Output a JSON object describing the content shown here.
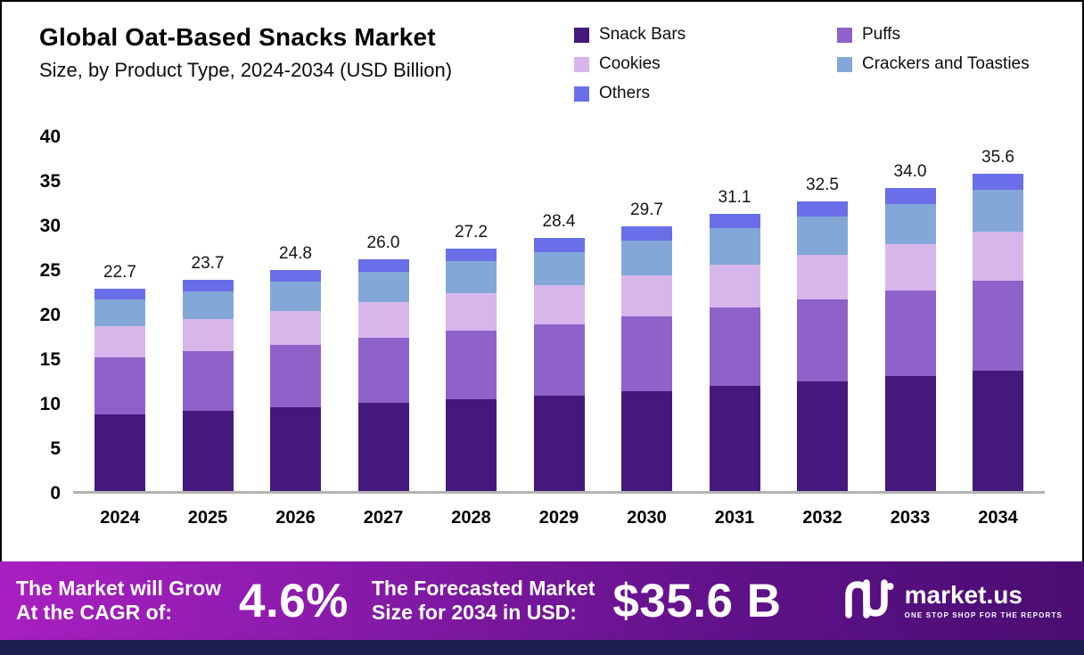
{
  "header": {
    "title": "Global Oat-Based Snacks Market",
    "subtitle": "Size, by Product Type, 2024-2034 (USD Billion)"
  },
  "chart_data": {
    "type": "bar",
    "stacked": true,
    "title": "Global Oat-Based Snacks Market Size, by Product Type, 2024-2034 (USD Billion)",
    "xlabel": "",
    "ylabel": "",
    "ylim": [
      0,
      40
    ],
    "yticks": [
      0,
      5,
      10,
      15,
      20,
      25,
      30,
      35,
      40
    ],
    "grid": false,
    "legend_position": "top-right",
    "categories": [
      "2024",
      "2025",
      "2026",
      "2027",
      "2028",
      "2029",
      "2030",
      "2031",
      "2032",
      "2033",
      "2034"
    ],
    "series": [
      {
        "name": "Snack Bars",
        "color": "#45197b",
        "values": [
          8.6,
          9.0,
          9.4,
          9.9,
          10.3,
          10.7,
          11.2,
          11.8,
          12.3,
          12.9,
          13.5
        ]
      },
      {
        "name": "Puffs",
        "color": "#8f62c9",
        "values": [
          6.4,
          6.7,
          7.0,
          7.3,
          7.7,
          8.0,
          8.4,
          8.8,
          9.2,
          9.6,
          10.1
        ]
      },
      {
        "name": "Cookies",
        "color": "#d7b6ec",
        "values": [
          3.5,
          3.6,
          3.8,
          4.0,
          4.2,
          4.4,
          4.6,
          4.8,
          5.0,
          5.2,
          5.5
        ]
      },
      {
        "name": "Crackers and Toasties",
        "color": "#83a8d8",
        "values": [
          3.0,
          3.1,
          3.3,
          3.4,
          3.6,
          3.7,
          3.9,
          4.1,
          4.3,
          4.5,
          4.7
        ]
      },
      {
        "name": "Others",
        "color": "#6a6ee8",
        "values": [
          1.2,
          1.3,
          1.3,
          1.4,
          1.4,
          1.6,
          1.6,
          1.6,
          1.7,
          1.8,
          1.8
        ]
      }
    ],
    "total_labels": [
      "22.7",
      "23.7",
      "24.8",
      "26.0",
      "27.2",
      "28.4",
      "29.7",
      "31.1",
      "32.5",
      "34.0",
      "35.6"
    ]
  },
  "footer": {
    "cagr_label_line1": "The Market will Grow",
    "cagr_label_line2": "At the CAGR of:",
    "cagr_value": "4.6%",
    "forecast_label_line1": "The Forecasted Market",
    "forecast_label_line2": "Size for 2034 in USD:",
    "forecast_value": "$35.6 B",
    "brand_name": "market.us",
    "brand_tagline": "ONE STOP SHOP FOR THE REPORTS"
  }
}
